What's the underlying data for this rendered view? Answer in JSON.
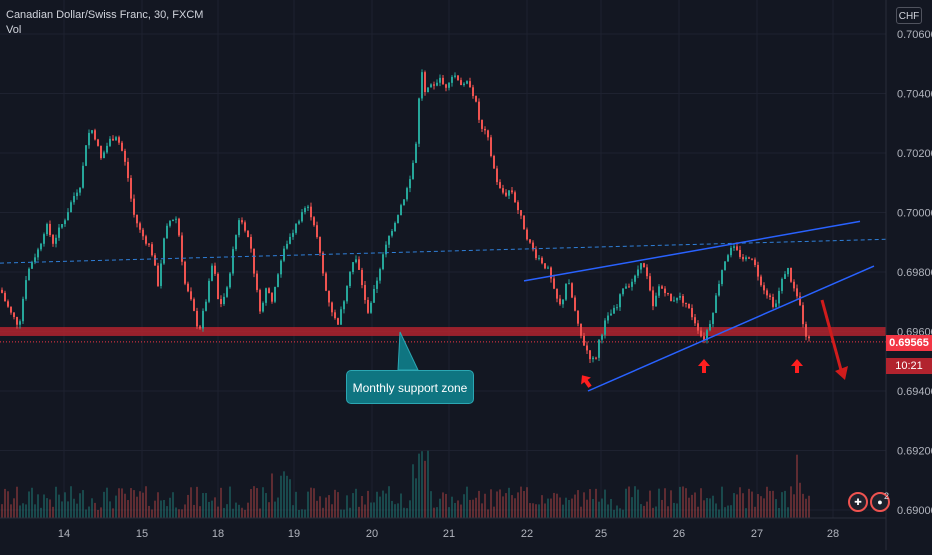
{
  "legend": {
    "symbol": "Canadian Dollar/Swiss Franc, 30, FXCM",
    "indicator": "Vol"
  },
  "axis": {
    "currency": "CHF"
  },
  "current_price": {
    "label": "0.69565",
    "countdown": "10:21"
  },
  "annotations": {
    "callout_text": "Monthly support zone"
  },
  "events": {
    "badge_count": "2"
  },
  "colors": {
    "background": "#131722",
    "up": "#26a69a",
    "down": "#ef5350",
    "trendline": "#2962ff",
    "support_zone": "#b2232e",
    "arrow": "#ff1f1f",
    "callout": "#0f7581",
    "price_tag": "#f23645"
  },
  "chart_data": {
    "type": "candlestick",
    "title": "Canadian Dollar/Swiss Franc, 30, FXCM",
    "ylim": [
      0.689,
      0.7066
    ],
    "y_ticks": [
      "0.69000",
      "0.69200",
      "0.69400",
      "0.69600",
      "0.69800",
      "0.70000",
      "0.70200",
      "0.70400",
      "0.70600"
    ],
    "x_ticks": [
      "14",
      "15",
      "18",
      "19",
      "20",
      "21",
      "22",
      "25",
      "26",
      "27",
      "28"
    ],
    "anchors": [
      [
        0,
        0.6974
      ],
      [
        3,
        0.6971
      ],
      [
        10,
        0.6966
      ],
      [
        18,
        0.6962
      ],
      [
        25,
        0.6978
      ],
      [
        30,
        0.6983
      ],
      [
        38,
        0.6988
      ],
      [
        45,
        0.6996
      ],
      [
        52,
        0.699
      ],
      [
        58,
        0.6994
      ],
      [
        64,
        0.6998
      ],
      [
        72,
        0.7005
      ],
      [
        80,
        0.701
      ],
      [
        86,
        0.7026
      ],
      [
        92,
        0.7028
      ],
      [
        100,
        0.7018
      ],
      [
        108,
        0.7024
      ],
      [
        115,
        0.7026
      ],
      [
        120,
        0.7022
      ],
      [
        126,
        0.7014
      ],
      [
        132,
        0.7
      ],
      [
        140,
        0.6993
      ],
      [
        150,
        0.6988
      ],
      [
        157,
        0.6976
      ],
      [
        164,
        0.6993
      ],
      [
        170,
        0.6998
      ],
      [
        176,
        0.6998
      ],
      [
        184,
        0.6976
      ],
      [
        190,
        0.697
      ],
      [
        198,
        0.696
      ],
      [
        206,
        0.6972
      ],
      [
        212,
        0.6984
      ],
      [
        218,
        0.6968
      ],
      [
        226,
        0.6974
      ],
      [
        232,
        0.6987
      ],
      [
        238,
        0.6998
      ],
      [
        244,
        0.6995
      ],
      [
        250,
        0.6988
      ],
      [
        255,
        0.6975
      ],
      [
        260,
        0.6966
      ],
      [
        266,
        0.6976
      ],
      [
        272,
        0.697
      ],
      [
        278,
        0.6982
      ],
      [
        286,
        0.699
      ],
      [
        294,
        0.6995
      ],
      [
        302,
        0.7001
      ],
      [
        306,
        0.7002
      ],
      [
        312,
        0.6998
      ],
      [
        318,
        0.6988
      ],
      [
        324,
        0.6975
      ],
      [
        330,
        0.6968
      ],
      [
        336,
        0.6962
      ],
      [
        342,
        0.6969
      ],
      [
        348,
        0.698
      ],
      [
        354,
        0.6985
      ],
      [
        360,
        0.6978
      ],
      [
        366,
        0.6966
      ],
      [
        372,
        0.6972
      ],
      [
        380,
        0.6983
      ],
      [
        388,
        0.6992
      ],
      [
        396,
        0.6999
      ],
      [
        404,
        0.7006
      ],
      [
        410,
        0.7012
      ],
      [
        416,
        0.7026
      ],
      [
        420,
        0.705
      ],
      [
        424,
        0.704
      ],
      [
        430,
        0.7042
      ],
      [
        438,
        0.7045
      ],
      [
        444,
        0.7042
      ],
      [
        450,
        0.7046
      ],
      [
        456,
        0.7046
      ],
      [
        462,
        0.7042
      ],
      [
        468,
        0.7044
      ],
      [
        474,
        0.7038
      ],
      [
        480,
        0.7028
      ],
      [
        486,
        0.7026
      ],
      [
        492,
        0.7016
      ],
      [
        498,
        0.7008
      ],
      [
        504,
        0.7006
      ],
      [
        510,
        0.7008
      ],
      [
        516,
        0.7002
      ],
      [
        522,
        0.6996
      ],
      [
        528,
        0.699
      ],
      [
        534,
        0.6986
      ],
      [
        540,
        0.6984
      ],
      [
        548,
        0.698
      ],
      [
        554,
        0.6972
      ],
      [
        560,
        0.6968
      ],
      [
        566,
        0.6978
      ],
      [
        572,
        0.697
      ],
      [
        578,
        0.696
      ],
      [
        584,
        0.6955
      ],
      [
        590,
        0.6951
      ],
      [
        594,
        0.695
      ],
      [
        598,
        0.6957
      ],
      [
        604,
        0.6963
      ],
      [
        610,
        0.6966
      ],
      [
        616,
        0.6968
      ],
      [
        622,
        0.6975
      ],
      [
        628,
        0.6976
      ],
      [
        634,
        0.6978
      ],
      [
        640,
        0.6984
      ],
      [
        646,
        0.6978
      ],
      [
        652,
        0.6968
      ],
      [
        658,
        0.6975
      ],
      [
        664,
        0.6974
      ],
      [
        670,
        0.697
      ],
      [
        676,
        0.6972
      ],
      [
        684,
        0.697
      ],
      [
        690,
        0.6966
      ],
      [
        696,
        0.6962
      ],
      [
        702,
        0.6957
      ],
      [
        708,
        0.6962
      ],
      [
        714,
        0.697
      ],
      [
        720,
        0.698
      ],
      [
        726,
        0.6986
      ],
      [
        732,
        0.6988
      ],
      [
        738,
        0.6986
      ],
      [
        744,
        0.6984
      ],
      [
        750,
        0.6986
      ],
      [
        756,
        0.698
      ],
      [
        762,
        0.6975
      ],
      [
        768,
        0.6972
      ],
      [
        774,
        0.6968
      ],
      [
        780,
        0.6976
      ],
      [
        786,
        0.6982
      ],
      [
        792,
        0.6975
      ],
      [
        798,
        0.697
      ],
      [
        804,
        0.696
      ],
      [
        808,
        0.6957
      ]
    ],
    "support_zone": [
      0.69585,
      0.69615
    ],
    "trendlines": [
      {
        "style": "dashed",
        "points": [
          [
            0,
            0.6983
          ],
          [
            886,
            0.6991
          ]
        ]
      },
      {
        "style": "solid",
        "points": [
          [
            524,
            0.6977
          ],
          [
            860,
            0.6997
          ]
        ]
      },
      {
        "style": "solid",
        "points": [
          [
            588,
            0.694
          ],
          [
            874,
            0.6982
          ]
        ]
      }
    ],
    "reference_price": 0.69565
  }
}
